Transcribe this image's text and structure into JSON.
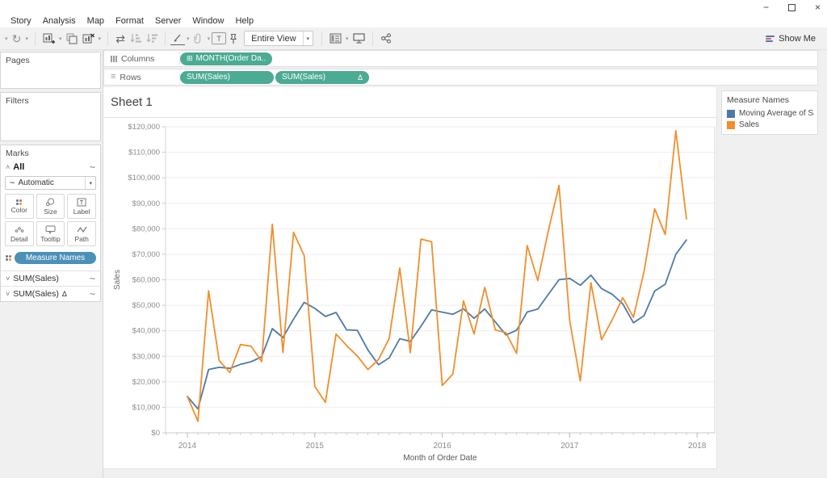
{
  "window": {
    "minimize": "−",
    "maximize": "",
    "close": "×"
  },
  "menu": {
    "items": [
      "Story",
      "Analysis",
      "Map",
      "Format",
      "Server",
      "Window",
      "Help"
    ]
  },
  "toolbar": {
    "fit_selector": "Entire View",
    "show_me_label": "Show Me"
  },
  "shelves": {
    "columns_label": "Columns",
    "rows_label": "Rows",
    "columns_pill": {
      "prefix": "⊞",
      "label": "MONTH(Order Da.."
    },
    "rows_pills": [
      {
        "label": "SUM(Sales)",
        "delta": ""
      },
      {
        "label": "SUM(Sales)",
        "delta": "Δ"
      }
    ]
  },
  "left_panel": {
    "pages_label": "Pages",
    "filters_label": "Filters",
    "marks": {
      "title": "Marks",
      "all_label": "All",
      "mark_type": "Automatic",
      "buttons": [
        "Color",
        "Size",
        "Label",
        "Detail",
        "Tooltip",
        "Path"
      ],
      "color_pill": "Measure Names",
      "fields": [
        {
          "label": "SUM(Sales)",
          "delta": ""
        },
        {
          "label": "SUM(Sales)",
          "delta": "Δ"
        }
      ]
    }
  },
  "legend": {
    "title": "Measure Names",
    "items": [
      {
        "label": "Moving Average of Sa..",
        "color": "#4E79A7"
      },
      {
        "label": "Sales",
        "color": "#F28E2B"
      }
    ]
  },
  "sheet": {
    "title": "Sheet 1"
  },
  "chart_data": {
    "type": "line",
    "title": "Sheet 1",
    "xlabel": "Month of Order Date",
    "ylabel": "Sales",
    "ylim": [
      0,
      120000
    ],
    "ytick_step": 10000,
    "y_tick_labels": [
      "$0",
      "$10,000",
      "$20,000",
      "$30,000",
      "$40,000",
      "$50,000",
      "$60,000",
      "$70,000",
      "$80,000",
      "$90,000",
      "$100,000",
      "$110,000",
      "$120,000"
    ],
    "x_year_labels": [
      "2014",
      "2015",
      "2016",
      "2017",
      "2018"
    ],
    "grid": "horizontal",
    "legend_position": "right",
    "months": [
      "2014-01",
      "2014-02",
      "2014-03",
      "2014-04",
      "2014-05",
      "2014-06",
      "2014-07",
      "2014-08",
      "2014-09",
      "2014-10",
      "2014-11",
      "2014-12",
      "2015-01",
      "2015-02",
      "2015-03",
      "2015-04",
      "2015-05",
      "2015-06",
      "2015-07",
      "2015-08",
      "2015-09",
      "2015-10",
      "2015-11",
      "2015-12",
      "2016-01",
      "2016-02",
      "2016-03",
      "2016-04",
      "2016-05",
      "2016-06",
      "2016-07",
      "2016-08",
      "2016-09",
      "2016-10",
      "2016-11",
      "2016-12",
      "2017-01",
      "2017-02",
      "2017-03",
      "2017-04",
      "2017-05",
      "2017-06",
      "2017-07",
      "2017-08",
      "2017-09",
      "2017-10",
      "2017-11",
      "2017-12"
    ],
    "series": [
      {
        "name": "Moving Average of Sales",
        "color": "#4E79A7",
        "values": [
          14237,
          9379,
          24816,
          25686,
          25278,
          26831,
          27847,
          29801,
          40837,
          37375,
          44565,
          51122,
          48776,
          45634,
          47179,
          40382,
          40193,
          32503,
          26677,
          29352,
          36872,
          35826,
          41795,
          48193,
          47300,
          46473,
          48590,
          44897,
          48552,
          43462,
          38368,
          40165,
          47369,
          48508,
          54317,
          60033,
          60551,
          57842,
          61807,
          56538,
          54334,
          50558,
          43168,
          45903,
          55556,
          58256,
          69960,
          75613
        ]
      },
      {
        "name": "Sales",
        "color": "#F28E2B",
        "values": [
          14237,
          4520,
          55691,
          28295,
          23648,
          34595,
          33946,
          27909,
          81777,
          31453,
          78629,
          69545,
          18174,
          11951,
          38726,
          34195,
          30131,
          24797,
          28765,
          36898,
          64595,
          31404,
          75973,
          74920,
          18542,
          22978,
          51715,
          38750,
          56988,
          40344,
          39262,
          31115,
          73410,
          59687,
          79411,
          96999,
          43971,
          20301,
          58872,
          36522,
          44261,
          52982,
          45264,
          63121,
          87867,
          77777,
          118448,
          83829
        ]
      }
    ]
  }
}
